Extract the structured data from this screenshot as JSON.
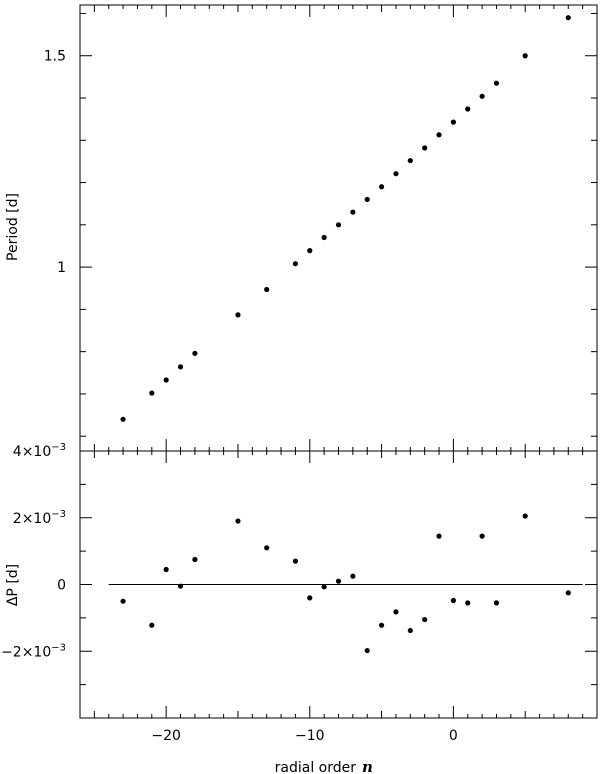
{
  "chart_data": [
    {
      "type": "scatter",
      "title": "",
      "xlabel": "",
      "ylabel": "Period [d]",
      "xlim": [
        -26,
        10
      ],
      "ylim": [
        0.565,
        1.62
      ],
      "x_ticks": [
        -20,
        -10,
        0,
        10
      ],
      "y_ticks": [
        1,
        1.5
      ],
      "y_tick_labels": [
        "1",
        "1.5"
      ],
      "grid": false,
      "series": [
        {
          "x": [
            -23,
            -21,
            -20,
            -19,
            -18,
            -15,
            -13,
            -11,
            -10,
            -9,
            -8,
            -7,
            -6,
            -5,
            -4,
            -3,
            -2,
            -1,
            0,
            1,
            2,
            3,
            5,
            8
          ],
          "y": [
            0.64,
            0.702,
            0.733,
            0.764,
            0.796,
            0.887,
            0.947,
            1.008,
            1.039,
            1.07,
            1.1,
            1.13,
            1.16,
            1.19,
            1.221,
            1.252,
            1.282,
            1.313,
            1.343,
            1.374,
            1.404,
            1.435,
            1.5,
            1.59
          ]
        }
      ]
    },
    {
      "type": "scatter",
      "title": "",
      "xlabel": "radial order",
      "xlabel_symbol": "n",
      "ylabel": "ΔP [d]",
      "xlim": [
        -26,
        10
      ],
      "ylim": [
        -0.004,
        0.004
      ],
      "x_ticks": [
        -20,
        -10,
        0
      ],
      "x_tick_labels": [
        "−20",
        "−10",
        "0"
      ],
      "y_ticks": [
        0.004,
        0.002,
        0,
        -0.002
      ],
      "y_tick_labels": [
        {
          "mantissa": "4×10",
          "exponent": "−3"
        },
        {
          "mantissa": "2×10",
          "exponent": "−3"
        },
        {
          "mantissa": "0",
          "exponent": ""
        },
        {
          "mantissa": "−2×10",
          "exponent": "−3"
        }
      ],
      "zero_line": true,
      "grid": false,
      "series": [
        {
          "x": [
            -23,
            -21,
            -20,
            -19,
            -18,
            -15,
            -13,
            -11,
            -10,
            -9,
            -8,
            -7,
            -6,
            -5,
            -4,
            -3,
            -2,
            -1,
            0,
            1,
            2,
            3,
            5,
            8
          ],
          "y": [
            -0.0005,
            -0.00122,
            0.00045,
            -5e-05,
            0.00075,
            0.0019,
            0.0011,
            0.0007,
            -0.0004,
            -7e-05,
            0.0001,
            0.00025,
            -0.00198,
            -0.00122,
            -0.00082,
            -0.00138,
            -0.00105,
            0.00145,
            -0.00048,
            -0.00055,
            0.00145,
            -0.00055,
            0.00205,
            -0.00025
          ]
        }
      ]
    }
  ]
}
